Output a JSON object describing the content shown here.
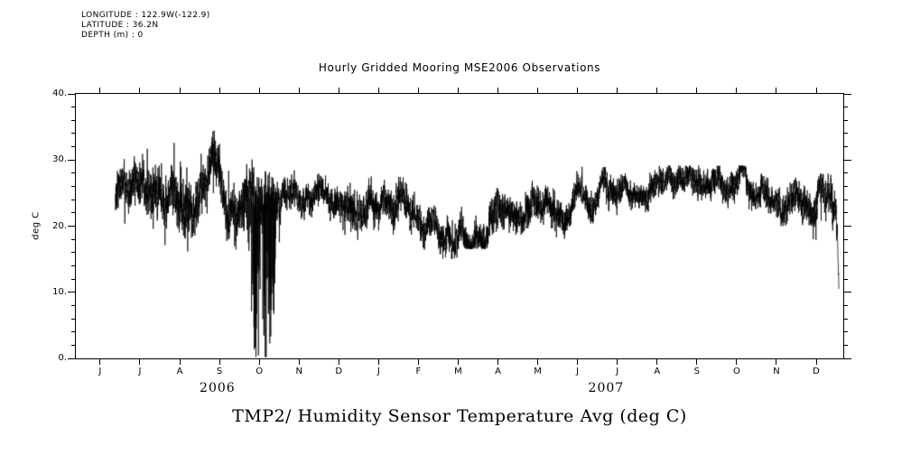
{
  "header": {
    "lines": [
      "LONGITUDE : 122.9W(-122.9)",
      "LATITUDE : 36.2N",
      "DEPTH (m) : 0"
    ]
  },
  "chart_data": {
    "type": "line",
    "title": "Hourly Gridded Mooring MSE2006 Observations",
    "bottom_title": "TMP2/ Humidity Sensor Temperature Avg (deg C)",
    "ylabel": "deg C",
    "line_color": "#000000",
    "grid": false,
    "legend": "none",
    "y_axis": {
      "lim": [
        0,
        40
      ],
      "major_ticks": [
        {
          "v": 40,
          "label": "40."
        },
        {
          "v": 30,
          "label": "30."
        },
        {
          "v": 20,
          "label": "20."
        },
        {
          "v": 10,
          "label": "10."
        },
        {
          "v": 0,
          "label": "0."
        }
      ],
      "minor_step": 2
    },
    "x_axis": {
      "tick_labels": [
        "J",
        "J",
        "A",
        "S",
        "O",
        "N",
        "D",
        "J",
        "F",
        "M",
        "A",
        "M",
        "J",
        "J",
        "A",
        "S",
        "O",
        "N",
        "D"
      ],
      "months_span": "Jun 2006 - Dec 2007",
      "range_in_tick_units": [
        -0.61,
        18.68
      ],
      "year_labels": [
        {
          "label": "2006",
          "u": 2.95
        },
        {
          "label": "2007",
          "u": 12.72
        }
      ]
    },
    "series": [
      {
        "name": "TMP2/ Humidity Sensor Temperature Avg",
        "color": "#000000",
        "sampling": "hourly",
        "u_start": 0.38,
        "u_end": 18.57,
        "segments": [
          {
            "from": 0.38,
            "to": 1.0,
            "mean": 25.0,
            "sd": 2.0,
            "min": 18.0,
            "max": 31.0,
            "dn_p": 0.01,
            "dn_d": 5
          },
          {
            "from": 1.0,
            "to": 2.0,
            "mean": 25.0,
            "sd": 2.5,
            "min": 17.0,
            "max": 35.0,
            "up_p": 0.025,
            "up_d": 8,
            "dn_p": 0.02,
            "dn_d": 6
          },
          {
            "from": 2.0,
            "to": 3.0,
            "mean": 25.0,
            "sd": 2.5,
            "min": 16.0,
            "max": 35.0,
            "up_p": 0.02,
            "up_d": 8,
            "dn_p": 0.02,
            "dn_d": 6
          },
          {
            "from": 3.0,
            "to": 3.6,
            "mean": 24.5,
            "sd": 2.3,
            "min": 13.0,
            "max": 33.0,
            "up_p": 0.015,
            "up_d": 7,
            "dn_p": 0.03,
            "dn_d": 9
          },
          {
            "from": 3.6,
            "to": 4.55,
            "mean": 23.0,
            "sd": 2.5,
            "min": 0.2,
            "max": 32.0,
            "dn_p": 0.02,
            "dn_d": 6
          },
          {
            "from": 4.55,
            "to": 6.0,
            "mean": 23.5,
            "sd": 1.7,
            "min": 19.0,
            "max": 28.5
          },
          {
            "from": 6.0,
            "to": 7.0,
            "mean": 23.0,
            "sd": 1.9,
            "min": 17.0,
            "max": 28.5,
            "dn_p": 0.015,
            "dn_d": 4
          },
          {
            "from": 7.0,
            "to": 8.0,
            "mean": 22.0,
            "sd": 1.9,
            "min": 16.5,
            "max": 27.5,
            "dn_p": 0.015,
            "dn_d": 4
          },
          {
            "from": 8.0,
            "to": 9.0,
            "mean": 21.0,
            "sd": 1.9,
            "min": 15.0,
            "max": 26.5,
            "dn_p": 0.02,
            "dn_d": 4
          },
          {
            "from": 9.0,
            "to": 10.0,
            "mean": 22.5,
            "sd": 1.9,
            "min": 16.5,
            "max": 28.0,
            "dn_p": 0.01,
            "dn_d": 4
          },
          {
            "from": 10.0,
            "to": 11.0,
            "mean": 23.0,
            "sd": 1.8,
            "min": 17.0,
            "max": 28.0
          },
          {
            "from": 11.0,
            "to": 12.0,
            "mean": 23.5,
            "sd": 1.7,
            "min": 18.0,
            "max": 28.5
          },
          {
            "from": 12.0,
            "to": 13.0,
            "mean": 24.5,
            "sd": 1.6,
            "min": 19.5,
            "max": 29.0
          },
          {
            "from": 13.0,
            "to": 14.0,
            "mean": 25.5,
            "sd": 1.5,
            "min": 21.0,
            "max": 29.0
          },
          {
            "from": 14.0,
            "to": 15.0,
            "mean": 26.0,
            "sd": 1.4,
            "min": 22.0,
            "max": 29.2
          },
          {
            "from": 15.0,
            "to": 16.0,
            "mean": 25.5,
            "sd": 1.5,
            "min": 21.0,
            "max": 29.2
          },
          {
            "from": 16.0,
            "to": 17.0,
            "mean": 25.0,
            "sd": 1.6,
            "min": 21.0,
            "max": 29.2
          },
          {
            "from": 17.0,
            "to": 17.9,
            "mean": 24.0,
            "sd": 1.7,
            "min": 20.0,
            "max": 29.0
          },
          {
            "from": 17.9,
            "to": 18.57,
            "mean": 22.5,
            "sd": 2.0,
            "min": 10.0,
            "max": 28.0,
            "dn_p": 0.02,
            "dn_d": 5
          }
        ],
        "events": [
          {
            "type": "dropouts",
            "from": 3.6,
            "to": 4.55,
            "max_depth": 24,
            "min_value": 0.2,
            "spike_probability": 0.33,
            "note": "deep downward spikes reaching 0 deg C around Oct 2006"
          },
          {
            "type": "final_drop",
            "from": 18.46,
            "to": 18.57,
            "end_value": 10.5,
            "note": "sharp drop to ~10.5 deg C at end of record, Dec 2007"
          }
        ]
      }
    ]
  }
}
